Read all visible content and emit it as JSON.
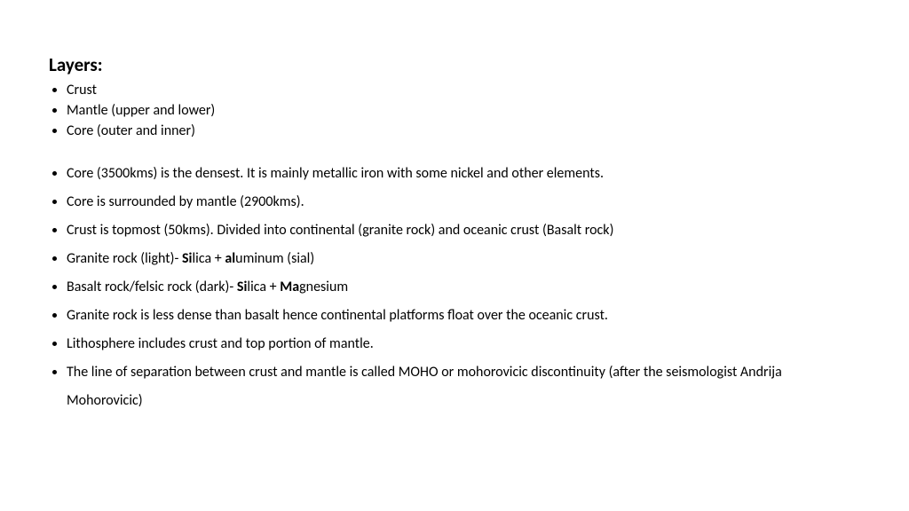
{
  "title": "Layers:",
  "compact_items": [
    "Crust",
    "Mantle (upper and lower)",
    "Core (outer and inner)"
  ],
  "spaced_items": [
    {
      "text": "Core (3500kms) is the densest. It is mainly metallic iron with some nickel and other elements."
    },
    {
      "text": "Core is surrounded by mantle (2900kms)."
    },
    {
      "text": "Crust is topmost (50kms). Divided into continental (granite rock) and oceanic crust (Basalt rock)"
    },
    {
      "html": "Granite rock (light)- <b>Si</b>lica + <b>al</b>uminum (sial)"
    },
    {
      "html": "Basalt rock/felsic rock (dark)- <b>Si</b>lica + <b>Ma</b>gnesium"
    },
    {
      "text": "Granite rock is less dense than basalt hence continental platforms float over the oceanic crust."
    },
    {
      "text": "Lithosphere includes crust and top portion of mantle."
    },
    {
      "text": "The line of separation between crust and mantle is called MOHO or mohorovicic discontinuity (after the seismologist Andrija Mohorovicic)"
    }
  ],
  "colors": {
    "background": "#ffffff",
    "text": "#000000"
  },
  "fonts": {
    "title_size": 21,
    "body_size": 16
  }
}
